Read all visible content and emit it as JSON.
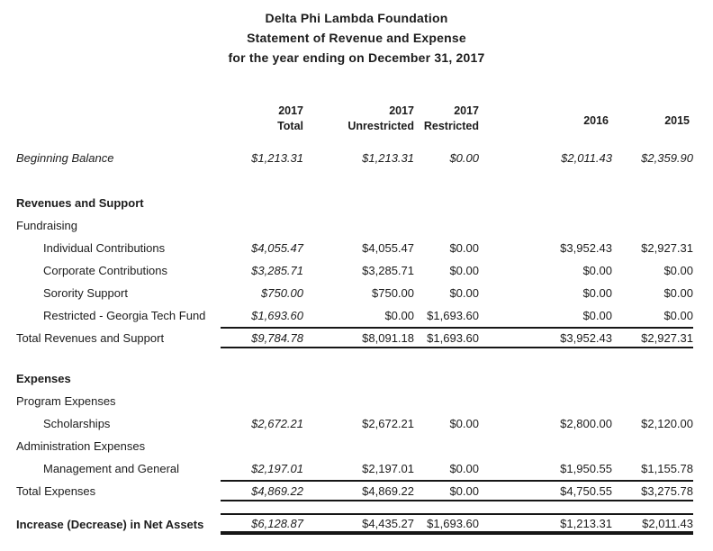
{
  "title": {
    "lines": [
      "Delta Phi Lambda Foundation",
      "Statement of Revenue and Expense",
      "for the year ending on December 31, 2017"
    ]
  },
  "header": {
    "cols": [
      {
        "line1": "2017",
        "line2": "Total"
      },
      {
        "line1": "2017",
        "line2": "Unrestricted"
      },
      {
        "line1": "2017",
        "line2": "Restricted"
      },
      {
        "line1": "2016",
        "line2": ""
      },
      {
        "line1": "2015",
        "line2": ""
      }
    ]
  },
  "table": {
    "rows": [
      {
        "label": "Beginning Balance",
        "italic": true,
        "indent": 0,
        "values": [
          "$1,213.31",
          "$1,213.31",
          "$0.00",
          "$2,011.43",
          "$2,359.90"
        ],
        "values_italic": "all"
      },
      {
        "type": "spacer",
        "size": "lg"
      },
      {
        "label": "Revenues and Support",
        "bold": true,
        "indent": 0,
        "values": null
      },
      {
        "label": "Fundraising",
        "indent": 0,
        "values": null
      },
      {
        "label": "Individual Contributions",
        "indent": 1,
        "values": [
          "$4,055.47",
          "$4,055.47",
          "$0.00",
          "$3,952.43",
          "$2,927.31"
        ],
        "values_italic": "first"
      },
      {
        "label": "Corporate Contributions",
        "indent": 1,
        "values": [
          "$3,285.71",
          "$3,285.71",
          "$0.00",
          "$0.00",
          "$0.00"
        ],
        "values_italic": "first"
      },
      {
        "label": "Sorority Support",
        "indent": 1,
        "values": [
          "$750.00",
          "$750.00",
          "$0.00",
          "$0.00",
          "$0.00"
        ],
        "values_italic": "first"
      },
      {
        "label": "Restricted - Georgia Tech Fund",
        "indent": 1,
        "values": [
          "$1,693.60",
          "$0.00",
          "$1,693.60",
          "$0.00",
          "$0.00"
        ],
        "values_italic": "first"
      },
      {
        "label": "Total Revenues and Support",
        "indent": 0,
        "values": [
          "$9,784.78",
          "$8,091.18",
          "$1,693.60",
          "$3,952.43",
          "$2,927.31"
        ],
        "values_italic": "first",
        "rules": "both"
      },
      {
        "type": "spacer",
        "size": "md"
      },
      {
        "label": "Expenses",
        "bold": true,
        "indent": 0,
        "values": null
      },
      {
        "label": "Program Expenses",
        "indent": 0,
        "values": null
      },
      {
        "label": "Scholarships",
        "indent": 1,
        "values": [
          "$2,672.21",
          "$2,672.21",
          "$0.00",
          "$2,800.00",
          "$2,120.00"
        ],
        "values_italic": "first"
      },
      {
        "label": "Administration Expenses",
        "indent": 0,
        "values": null
      },
      {
        "label": "Management and General",
        "indent": 1,
        "values": [
          "$2,197.01",
          "$2,197.01",
          "$0.00",
          "$1,950.55",
          "$1,155.78"
        ],
        "values_italic": "first"
      },
      {
        "label": "Total Expenses",
        "indent": 0,
        "values": [
          "$4,869.22",
          "$4,869.22",
          "$0.00",
          "$4,750.55",
          "$3,275.78"
        ],
        "values_italic": "first",
        "rules": "both"
      },
      {
        "type": "spacer",
        "size": "sm"
      },
      {
        "label": "Increase (Decrease) in Net Assets",
        "bold": true,
        "indent": 0,
        "values": [
          "$6,128.87",
          "$4,435.27",
          "$1,693.60",
          "$1,213.31",
          "$2,011.43"
        ],
        "values_italic": "first",
        "rules": "both",
        "thick_bottom": true
      }
    ]
  },
  "colors": {
    "text": "#1c1c1c",
    "rule": "#161616",
    "background": "#ffffff"
  }
}
